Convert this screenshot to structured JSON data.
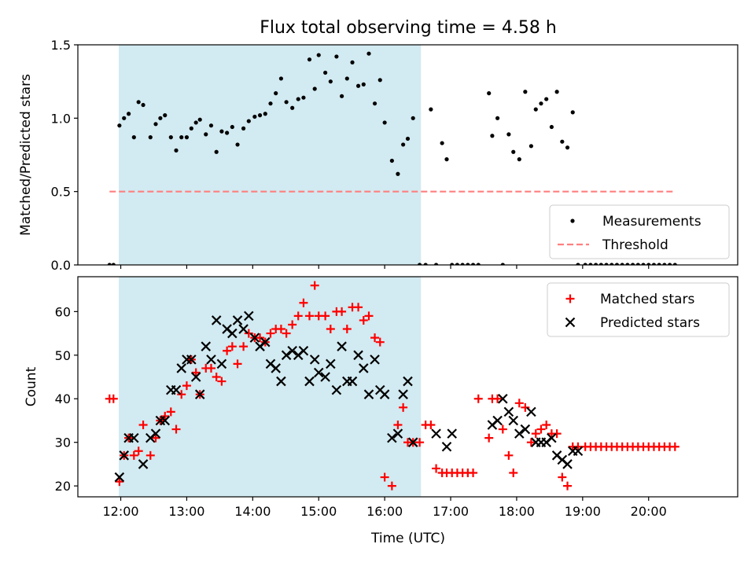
{
  "chart_data": {
    "title": "Flux total observing time = 4.58 h",
    "xlabel": "Time (UTC)",
    "x_unit": "hours UTC",
    "xlim": [
      11.35,
      21.35
    ],
    "x_ticks": [
      12,
      13,
      14,
      15,
      16,
      17,
      18,
      19,
      20
    ],
    "x_tick_labels": [
      "12:00",
      "13:00",
      "14:00",
      "15:00",
      "16:00",
      "17:00",
      "18:00",
      "19:00",
      "20:00"
    ],
    "shaded_span": {
      "start": 11.97,
      "end": 16.55,
      "color": "#add8e6"
    },
    "panels": [
      {
        "type": "scatter",
        "ylabel": "Matched/Predicted stars",
        "ylim": [
          0,
          1.5
        ],
        "y_ticks": [
          0.0,
          0.5,
          1.0,
          1.5
        ],
        "y_tick_labels": [
          "0.0",
          "0.5",
          "1.0",
          "1.5"
        ],
        "legend_position": "lower-right",
        "series": [
          {
            "name": "Measurements",
            "marker": "dot",
            "color": "#000000",
            "x": [
              11.83,
              11.89,
              11.98,
              12.05,
              12.12,
              12.2,
              12.27,
              12.34,
              12.45,
              12.53,
              12.6,
              12.67,
              12.76,
              12.84,
              12.92,
              13.0,
              13.07,
              13.14,
              13.2,
              13.29,
              13.37,
              13.45,
              13.53,
              13.61,
              13.69,
              13.77,
              13.86,
              13.94,
              14.03,
              14.11,
              14.19,
              14.27,
              14.35,
              14.43,
              14.51,
              14.6,
              14.69,
              14.77,
              14.86,
              14.94,
              15.0,
              15.1,
              15.18,
              15.27,
              15.35,
              15.43,
              15.51,
              15.6,
              15.68,
              15.76,
              15.85,
              15.93,
              16.0,
              16.11,
              16.2,
              16.28,
              16.35,
              16.43,
              16.53,
              16.62,
              16.7,
              16.78,
              16.87,
              16.94,
              17.02,
              17.1,
              17.18,
              17.26,
              17.34,
              17.42,
              17.58,
              17.63,
              17.71,
              17.79,
              17.88,
              17.95,
              18.04,
              18.13,
              18.22,
              18.29,
              18.37,
              18.45,
              18.53,
              18.61,
              18.69,
              18.77,
              18.85,
              18.93,
              19.04,
              19.12,
              19.2,
              19.28,
              19.36,
              19.44,
              19.52,
              19.6,
              19.68,
              19.76,
              19.84,
              19.92,
              20.0,
              20.08,
              20.16,
              20.24,
              20.32,
              20.4
            ],
            "y": [
              0,
              0,
              0.95,
              1.0,
              1.03,
              0.87,
              1.11,
              1.09,
              0.87,
              0.96,
              1.0,
              1.02,
              0.87,
              0.78,
              0.87,
              0.87,
              0.93,
              0.97,
              0.99,
              0.89,
              0.95,
              0.77,
              0.91,
              0.9,
              0.94,
              0.82,
              0.93,
              0.98,
              1.01,
              1.02,
              1.03,
              1.1,
              1.17,
              1.27,
              1.11,
              1.07,
              1.13,
              1.14,
              1.4,
              1.2,
              1.43,
              1.31,
              1.25,
              1.42,
              1.15,
              1.27,
              1.38,
              1.22,
              1.23,
              1.44,
              1.1,
              1.26,
              0.97,
              0.71,
              0.62,
              0.82,
              0.86,
              1.0,
              0,
              0,
              1.06,
              0,
              0.83,
              0.72,
              0,
              0,
              0,
              0,
              0,
              0,
              1.17,
              0.88,
              1.0,
              0,
              0.89,
              0.77,
              0.72,
              1.18,
              0.81,
              1.06,
              1.1,
              1.13,
              0.94,
              1.18,
              0.84,
              0.8,
              1.04,
              0,
              0,
              0,
              0,
              0,
              0,
              0,
              0,
              0,
              0,
              0,
              0,
              0,
              0,
              0,
              0,
              0,
              0,
              0
            ]
          },
          {
            "name": "Threshold",
            "type": "line",
            "style": "dashed",
            "color": "#ff7f7f",
            "x": [
              11.83,
              20.4
            ],
            "y": [
              0.5,
              0.5
            ]
          }
        ]
      },
      {
        "type": "scatter",
        "ylabel": "Count",
        "ylim": [
          17.5,
          68
        ],
        "y_ticks": [
          20,
          30,
          40,
          50,
          60
        ],
        "y_tick_labels": [
          "20",
          "30",
          "40",
          "50",
          "60"
        ],
        "legend_position": "upper-right",
        "series": [
          {
            "name": "Matched stars",
            "marker": "plus",
            "color": "#ff0000",
            "x": [
              11.83,
              11.89,
              11.98,
              12.05,
              12.12,
              12.2,
              12.27,
              12.34,
              12.45,
              12.53,
              12.6,
              12.67,
              12.76,
              12.84,
              12.92,
              13.0,
              13.07,
              13.14,
              13.2,
              13.29,
              13.37,
              13.45,
              13.53,
              13.61,
              13.69,
              13.77,
              13.86,
              13.94,
              14.03,
              14.11,
              14.19,
              14.27,
              14.35,
              14.43,
              14.51,
              14.6,
              14.69,
              14.77,
              14.86,
              14.94,
              15.0,
              15.1,
              15.18,
              15.27,
              15.35,
              15.43,
              15.51,
              15.6,
              15.68,
              15.76,
              15.85,
              15.93,
              16.0,
              16.11,
              16.2,
              16.28,
              16.35,
              16.43,
              16.53,
              16.62,
              16.7,
              16.78,
              16.87,
              16.94,
              17.02,
              17.1,
              17.18,
              17.26,
              17.34,
              17.42,
              17.58,
              17.63,
              17.71,
              17.79,
              17.88,
              17.95,
              18.04,
              18.13,
              18.22,
              18.29,
              18.37,
              18.45,
              18.53,
              18.61,
              18.69,
              18.77,
              18.85,
              18.93,
              19.04,
              19.12,
              19.2,
              19.28,
              19.36,
              19.44,
              19.52,
              19.6,
              19.68,
              19.76,
              19.84,
              19.92,
              20.0,
              20.08,
              20.16,
              20.24,
              20.32,
              20.4
            ],
            "y": [
              40,
              40,
              21,
              27,
              31,
              27,
              28,
              34,
              27,
              31,
              35,
              36,
              37,
              33,
              41,
              43,
              49,
              46,
              41,
              47,
              47,
              45,
              44,
              51,
              52,
              48,
              52,
              55,
              54,
              54,
              53,
              55,
              56,
              56,
              55,
              57,
              59,
              62,
              59,
              66,
              59,
              59,
              56,
              60,
              60,
              56,
              61,
              61,
              58,
              59,
              54,
              53,
              22,
              20,
              34,
              38,
              30,
              30,
              30,
              34,
              34,
              24,
              23,
              23,
              23,
              23,
              23,
              23,
              23,
              40,
              31,
              40,
              40,
              33,
              27,
              23,
              39,
              38,
              30,
              32,
              33,
              34,
              32,
              32,
              22,
              20,
              29,
              29,
              29,
              29,
              29,
              29,
              29,
              29,
              29,
              29,
              29,
              29,
              29,
              29,
              29,
              29,
              29,
              29,
              29,
              29
            ]
          },
          {
            "name": "Predicted stars",
            "marker": "x",
            "color": "#000000",
            "x": [
              11.98,
              12.05,
              12.12,
              12.2,
              12.34,
              12.45,
              12.53,
              12.6,
              12.67,
              12.76,
              12.84,
              12.92,
              13.0,
              13.07,
              13.14,
              13.2,
              13.29,
              13.37,
              13.45,
              13.53,
              13.61,
              13.69,
              13.77,
              13.86,
              13.94,
              14.03,
              14.11,
              14.19,
              14.27,
              14.35,
              14.43,
              14.51,
              14.6,
              14.69,
              14.77,
              14.86,
              14.94,
              15.0,
              15.1,
              15.18,
              15.27,
              15.35,
              15.43,
              15.51,
              15.6,
              15.68,
              15.76,
              15.85,
              15.93,
              16.0,
              16.11,
              16.2,
              16.28,
              16.35,
              16.43,
              16.78,
              16.94,
              17.02,
              17.63,
              17.71,
              17.79,
              17.88,
              17.95,
              18.04,
              18.13,
              18.22,
              18.29,
              18.37,
              18.45,
              18.53,
              18.61,
              18.69,
              18.77,
              18.85,
              18.93
            ],
            "y": [
              22,
              27,
              31,
              31,
              25,
              31,
              32,
              35,
              35,
              42,
              42,
              47,
              49,
              49,
              45,
              41,
              52,
              49,
              58,
              48,
              56,
              55,
              58,
              56,
              59,
              54,
              52,
              53,
              48,
              47,
              44,
              50,
              51,
              50,
              51,
              44,
              49,
              46,
              45,
              48,
              42,
              52,
              44,
              44,
              50,
              47,
              41,
              49,
              42,
              41,
              31,
              32,
              41,
              44,
              30,
              32,
              29,
              32,
              34,
              35,
              40,
              37,
              35,
              32,
              33,
              37,
              30,
              30,
              30,
              31,
              27,
              26,
              25,
              28,
              28
            ]
          }
        ]
      }
    ]
  }
}
